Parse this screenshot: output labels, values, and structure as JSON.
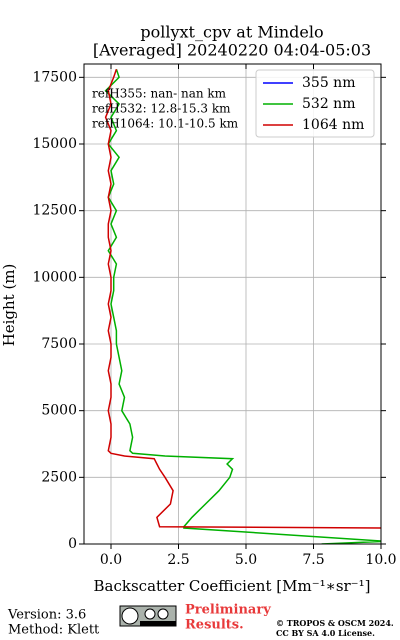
{
  "chart_data": {
    "type": "line",
    "title": [
      "pollyxt_cpv at Mindelo",
      "[Averaged] 20240220 04:04-05:03"
    ],
    "xlabel": "Backscatter Coefficient [Mm⁻¹∗sr⁻¹]",
    "ylabel": "Height (m)",
    "xlim": [
      -1,
      10
    ],
    "ylim": [
      0,
      18000
    ],
    "xticks": [
      {
        "value": 0,
        "label": "0.0"
      },
      {
        "value": 2.5,
        "label": "2.5"
      },
      {
        "value": 5,
        "label": "5.0"
      },
      {
        "value": 7.5,
        "label": "7.5"
      },
      {
        "value": 10,
        "label": "10.0"
      }
    ],
    "yticks": [
      0,
      2500,
      5000,
      7500,
      10000,
      12500,
      15000,
      17500
    ],
    "grid": true,
    "legend": "upper right",
    "annotations": [
      "refH355:  nan- nan km",
      "refH532: 12.8-15.3 km",
      "refH1064: 10.1-10.5 km"
    ],
    "y": [
      0,
      100,
      600,
      650,
      1000,
      1500,
      2000,
      2500,
      2800,
      3000,
      3200,
      3300,
      3400,
      3500,
      4000,
      4500,
      5000,
      5500,
      6000,
      6500,
      7000,
      7500,
      8000,
      8500,
      9000,
      9500,
      10000,
      10500,
      11000,
      11500,
      12000,
      12500,
      13000,
      13500,
      14000,
      14500,
      15000,
      15500,
      16000,
      16500,
      17000,
      17500,
      17800
    ],
    "series": [
      {
        "name": "355 nm",
        "color": "#0000ff",
        "values": [
          null,
          null,
          null,
          null,
          null,
          null,
          null,
          null,
          null,
          null,
          null,
          null,
          null,
          null,
          null,
          null,
          null,
          null,
          null,
          null,
          null,
          null,
          null,
          null,
          null,
          null,
          null,
          null,
          null,
          null,
          null,
          null,
          null,
          null,
          null,
          null,
          null,
          null,
          null,
          null,
          null,
          null,
          null
        ]
      },
      {
        "name": "532 nm",
        "color": "#00b000",
        "values": [
          7.8,
          10.2,
          2.7,
          2.7,
          3.0,
          3.5,
          4.0,
          4.4,
          4.5,
          4.3,
          4.5,
          2.0,
          0.8,
          0.7,
          0.8,
          0.7,
          0.4,
          0.5,
          0.3,
          0.4,
          0.3,
          0.2,
          0.2,
          0.1,
          0.0,
          0.1,
          0.1,
          0.2,
          -0.1,
          0.2,
          0.0,
          0.2,
          -0.1,
          0.1,
          0.0,
          0.3,
          -0.1,
          0.2,
          0.0,
          0.3,
          -0.2,
          0.3,
          0.2
        ]
      },
      {
        "name": "1064 nm",
        "color": "#d00000",
        "values": [
          10.5,
          10.5,
          10.0,
          1.8,
          1.7,
          2.2,
          2.3,
          2.0,
          1.8,
          1.7,
          1.6,
          0.5,
          0.0,
          -0.1,
          0.0,
          0.0,
          -0.1,
          0.0,
          0.0,
          -0.1,
          0.0,
          0.0,
          -0.1,
          0.0,
          -0.1,
          0.0,
          0.0,
          -0.1,
          0.0,
          -0.1,
          -0.1,
          0.0,
          -0.1,
          0.0,
          -0.1,
          0.0,
          -0.1,
          0.0,
          -0.2,
          0.0,
          -0.1,
          0.1,
          0.2
        ]
      }
    ]
  },
  "footer": {
    "version": "Version: 3.6",
    "method": "Method: Klett",
    "notice": [
      "Preliminary",
      "Results."
    ],
    "copyright": [
      "© TROPOS & OSCM 2024.",
      "CC BY SA 4.0 License."
    ]
  }
}
